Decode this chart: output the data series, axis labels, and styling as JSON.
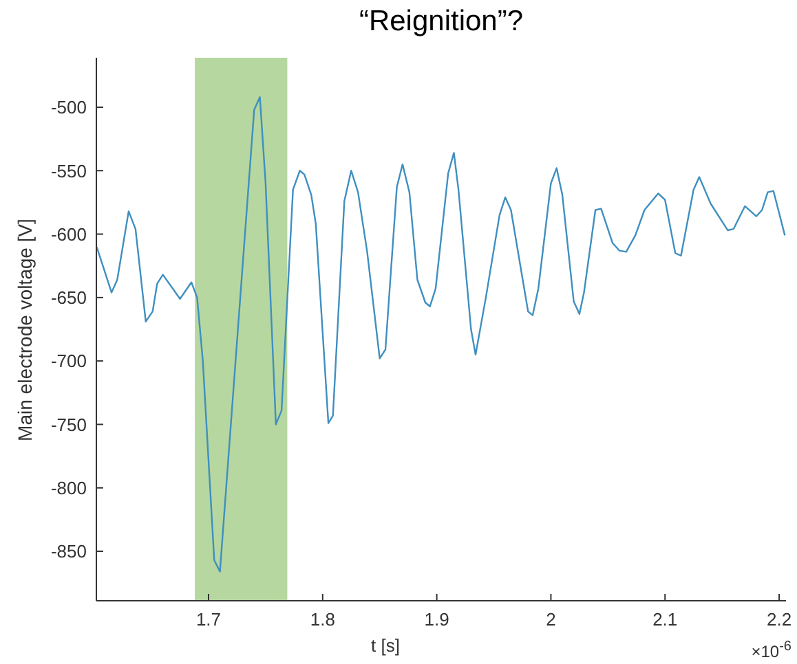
{
  "chart_data": {
    "type": "line",
    "title": "“Reignition”?",
    "xlabel": "t [s]",
    "ylabel": "Main electrode voltage [V]",
    "annotations": [
      "×10$^{-6}$"
    ],
    "x": [
      1.602,
      1.615,
      1.62,
      1.63,
      1.636,
      1.645,
      1.651,
      1.655,
      1.66,
      1.675,
      1.685,
      1.69,
      1.695,
      1.705,
      1.71,
      1.74,
      1.745,
      1.75,
      1.759,
      1.764,
      1.774,
      1.78,
      1.784,
      1.79,
      1.794,
      1.805,
      1.809,
      1.819,
      1.825,
      1.831,
      1.839,
      1.85,
      1.855,
      1.865,
      1.87,
      1.876,
      1.883,
      1.89,
      1.894,
      1.899,
      1.91,
      1.915,
      1.919,
      1.93,
      1.934,
      1.943,
      1.955,
      1.96,
      1.965,
      1.98,
      1.984,
      1.989,
      2.0,
      2.005,
      2.01,
      2.02,
      2.025,
      2.029,
      2.039,
      2.044,
      2.054,
      2.06,
      2.066,
      2.074,
      2.082,
      2.094,
      2.1,
      2.109,
      2.114,
      2.125,
      2.13,
      2.14,
      2.155,
      2.16,
      2.17,
      2.18,
      2.185,
      2.19,
      2.195,
      2.205
    ],
    "series": [
      {
        "color": "#3f8fc0",
        "values": [
          -610,
          -646,
          -636,
          -582,
          -596,
          -669,
          -661,
          -639,
          -632,
          -651,
          -638,
          -650,
          -700,
          -857,
          -866,
          -502,
          -492,
          -560,
          -750,
          -739,
          -565,
          -550,
          -553,
          -569,
          -592,
          -749,
          -743,
          -574,
          -550,
          -567,
          -614,
          -698,
          -691,
          -563,
          -545,
          -567,
          -636,
          -654,
          -657,
          -643,
          -552,
          -536,
          -565,
          -675,
          -695,
          -650,
          -585,
          -571,
          -581,
          -661,
          -664,
          -643,
          -560,
          -548,
          -569,
          -653,
          -663,
          -646,
          -581,
          -580,
          -607,
          -613,
          -614,
          -601,
          -581,
          -568,
          -573,
          -615,
          -617,
          -565,
          -555,
          -576,
          -597,
          -596,
          -578,
          -586,
          -581,
          -567,
          -566,
          -601
        ]
      }
    ],
    "xlim": [
      1.6017,
      2.206
    ],
    "ylim": [
      -889,
      -461
    ],
    "xticks": [
      1.7,
      1.8,
      1.9,
      2,
      2.1,
      2.2
    ],
    "yticks": [
      -850,
      -800,
      -750,
      -700,
      -650,
      -600,
      -550,
      -500
    ],
    "bands": [
      {
        "axis": "x",
        "from": 1.688,
        "to": 1.769,
        "color": "#a9d08e"
      }
    ],
    "grid": false,
    "line_style": "solid",
    "marker": "none"
  }
}
